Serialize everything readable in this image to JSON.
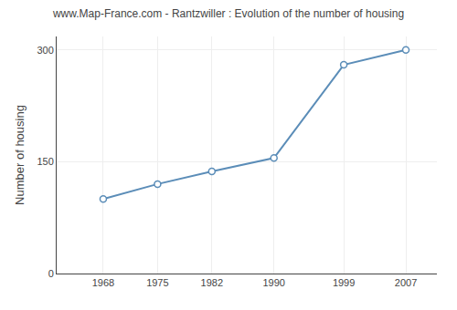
{
  "chart_data": {
    "type": "line",
    "title": "www.Map-France.com - Rantzwiller : Evolution of the number of housing",
    "ylabel": "Number of housing",
    "x": [
      1968,
      1975,
      1982,
      1990,
      1999,
      2007
    ],
    "values": [
      100,
      120,
      137,
      155,
      280,
      300
    ],
    "xlim": [
      1962,
      2011
    ],
    "xticks": [
      1968,
      1975,
      1982,
      1990,
      1999,
      2007
    ],
    "ylim": [
      0,
      318
    ],
    "yticks": [
      0,
      150,
      300
    ],
    "grid": true,
    "color": "#5b8db8",
    "marker": "circle"
  }
}
